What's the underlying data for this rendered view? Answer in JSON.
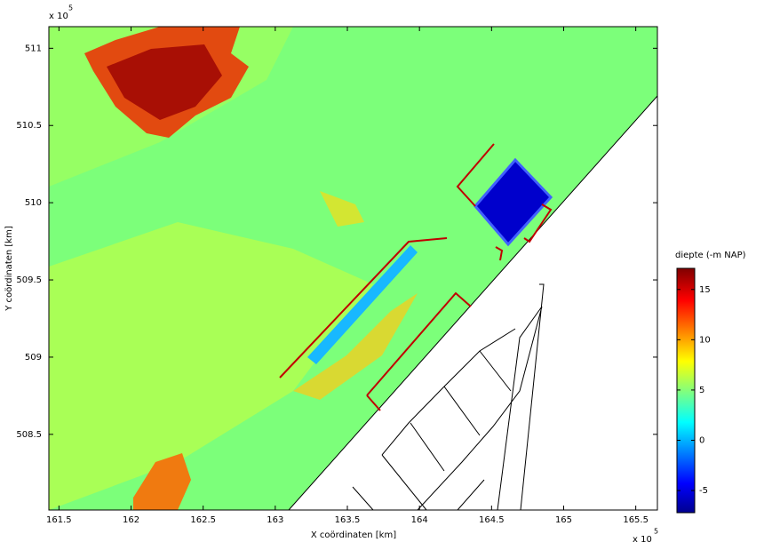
{
  "chart_data": {
    "type": "heatmap",
    "xlabel": "X coördinaten [km]",
    "ylabel": "Y coördinaten [km]",
    "x_multiplier": "x 10",
    "x_exponent": 5,
    "y_multiplier": "x 10",
    "y_exponent": 5,
    "xlim": [
      161.43,
      165.65
    ],
    "xticks": [
      161.5,
      162,
      162.5,
      163,
      163.5,
      164,
      164.5,
      165,
      165.5
    ],
    "ylim": [
      508.01,
      511.14
    ],
    "yticks": [
      508.5,
      509,
      509.5,
      510,
      510.5,
      511
    ],
    "colorbar_title": "diepte (-m NAP)",
    "clim": [
      -7.2,
      17.1
    ],
    "cticks": [
      -5,
      0,
      5,
      10,
      15
    ],
    "colormap": "jet"
  }
}
